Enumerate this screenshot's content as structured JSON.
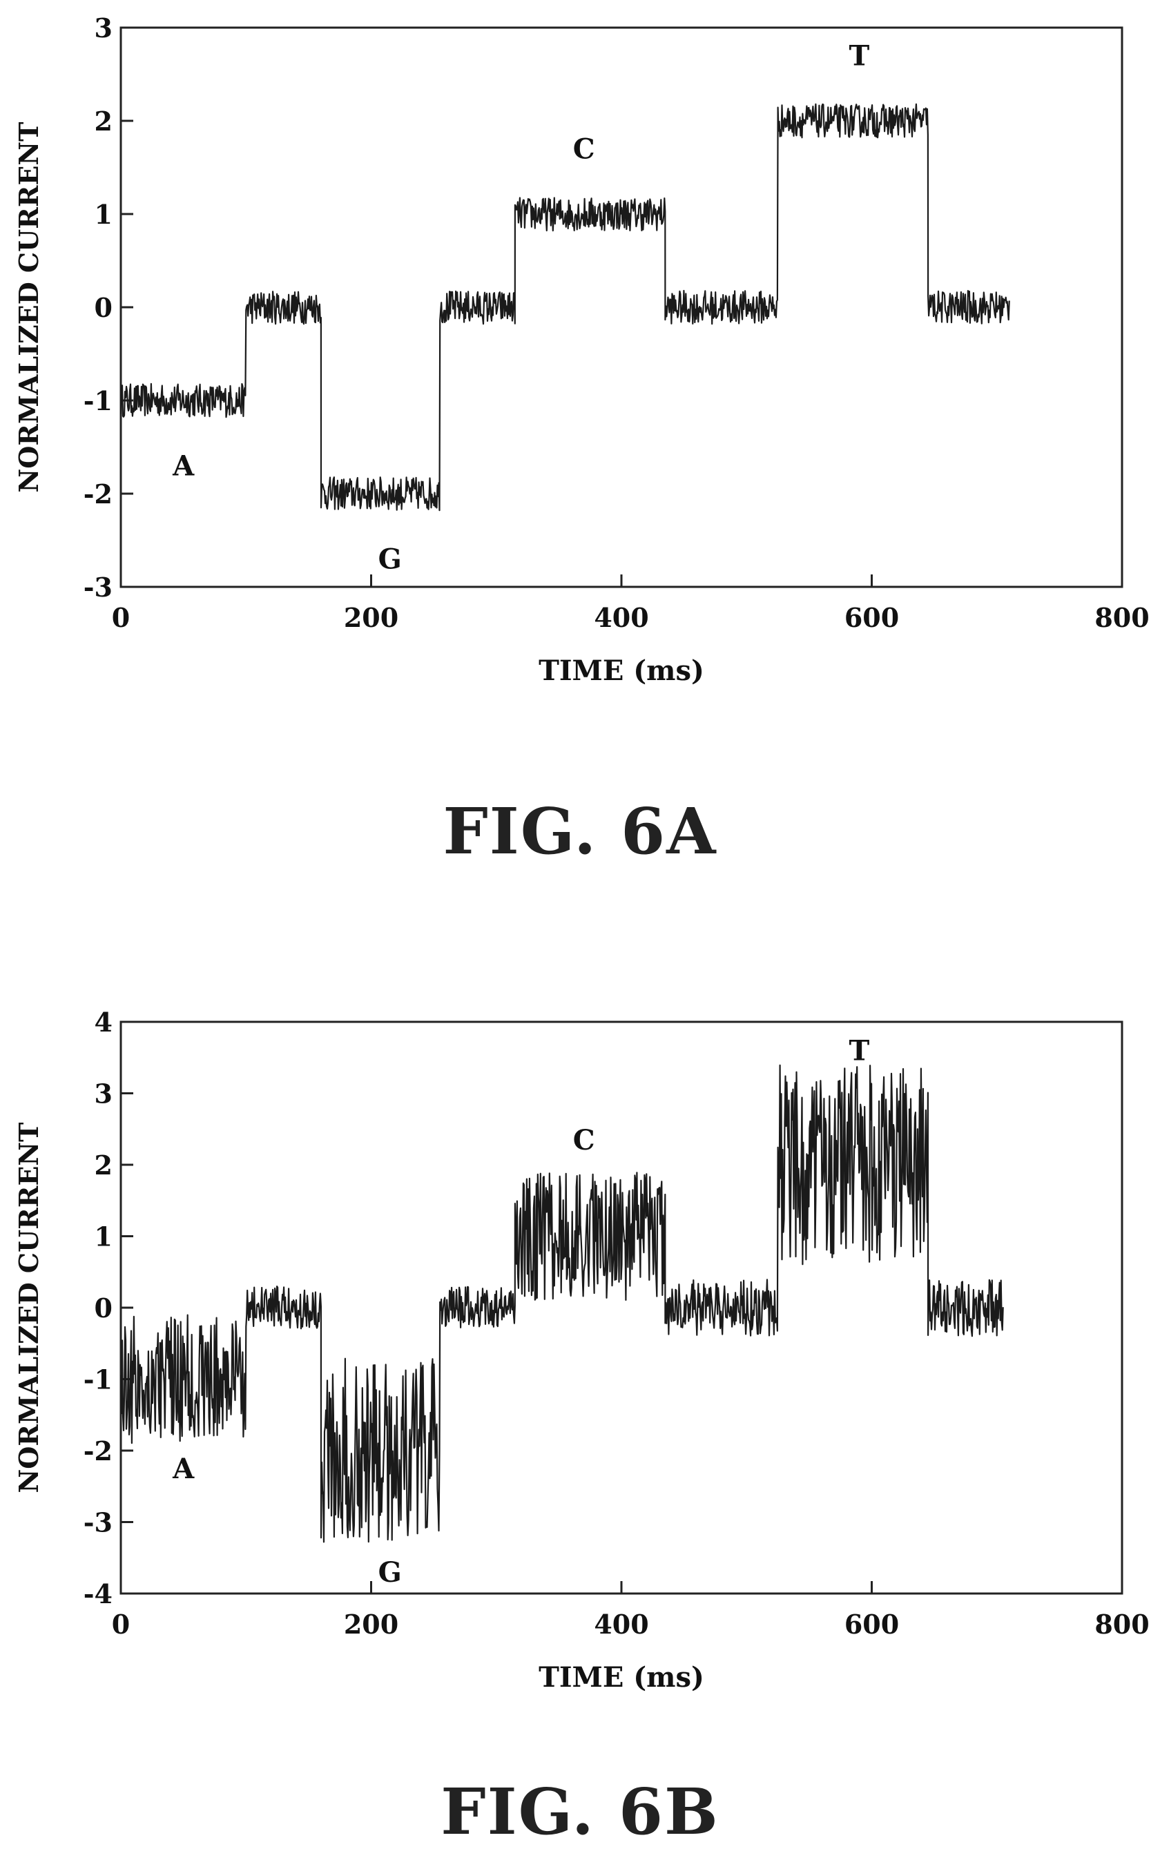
{
  "chart_data": [
    {
      "type": "line",
      "figure_label": "FIG. 6A",
      "xlabel": "TIME (ms)",
      "ylabel": "NORMALIZED CURRENT",
      "xlim": [
        0,
        800
      ],
      "ylim": [
        -3,
        3
      ],
      "xticks": [
        0,
        200,
        400,
        600,
        800
      ],
      "yticks": [
        -3,
        -2,
        -1,
        0,
        1,
        2,
        3
      ],
      "noise_amplitude": 0.18,
      "segments": [
        {
          "x_start": 0,
          "x_end": 100,
          "level": -1,
          "label": "A"
        },
        {
          "x_start": 100,
          "x_end": 160,
          "level": 0
        },
        {
          "x_start": 160,
          "x_end": 255,
          "level": -2,
          "label": "G"
        },
        {
          "x_start": 255,
          "x_end": 315,
          "level": 0
        },
        {
          "x_start": 315,
          "x_end": 435,
          "level": 1,
          "label": "C"
        },
        {
          "x_start": 435,
          "x_end": 525,
          "level": 0
        },
        {
          "x_start": 525,
          "x_end": 645,
          "level": 2,
          "label": "T"
        },
        {
          "x_start": 645,
          "x_end": 710,
          "level": 0
        }
      ],
      "annotations": [
        {
          "text": "A",
          "x": 50,
          "y": -1.7
        },
        {
          "text": "G",
          "x": 215,
          "y": -2.7
        },
        {
          "text": "C",
          "x": 370,
          "y": 1.7
        },
        {
          "text": "T",
          "x": 590,
          "y": 2.7
        }
      ]
    },
    {
      "type": "line",
      "figure_label": "FIG. 6B",
      "xlabel": "TIME (ms)",
      "ylabel": "NORMALIZED CURRENT",
      "xlim": [
        0,
        800
      ],
      "ylim": [
        -4,
        4
      ],
      "xticks": [
        0,
        200,
        400,
        600,
        800
      ],
      "yticks": [
        -4,
        -3,
        -2,
        -1,
        0,
        1,
        2,
        3,
        4
      ],
      "noise_amplitude": 0.35,
      "segments": [
        {
          "x_start": 0,
          "x_end": 100,
          "level": -1,
          "noise": 0.9,
          "label": "A"
        },
        {
          "x_start": 100,
          "x_end": 160,
          "level": 0,
          "noise": 0.3
        },
        {
          "x_start": 160,
          "x_end": 255,
          "level": -2,
          "noise": 1.3,
          "label": "G"
        },
        {
          "x_start": 255,
          "x_end": 315,
          "level": 0,
          "noise": 0.3
        },
        {
          "x_start": 315,
          "x_end": 435,
          "level": 1,
          "noise": 0.9,
          "label": "C"
        },
        {
          "x_start": 435,
          "x_end": 525,
          "level": 0,
          "noise": 0.4
        },
        {
          "x_start": 525,
          "x_end": 645,
          "level": 2,
          "noise": 1.4,
          "label": "T"
        },
        {
          "x_start": 645,
          "x_end": 705,
          "level": 0,
          "noise": 0.4
        }
      ],
      "annotations": [
        {
          "text": "A",
          "x": 50,
          "y": -2.25
        },
        {
          "text": "G",
          "x": 215,
          "y": -3.7
        },
        {
          "text": "C",
          "x": 370,
          "y": 2.35
        },
        {
          "text": "T",
          "x": 590,
          "y": 3.6
        }
      ]
    }
  ]
}
